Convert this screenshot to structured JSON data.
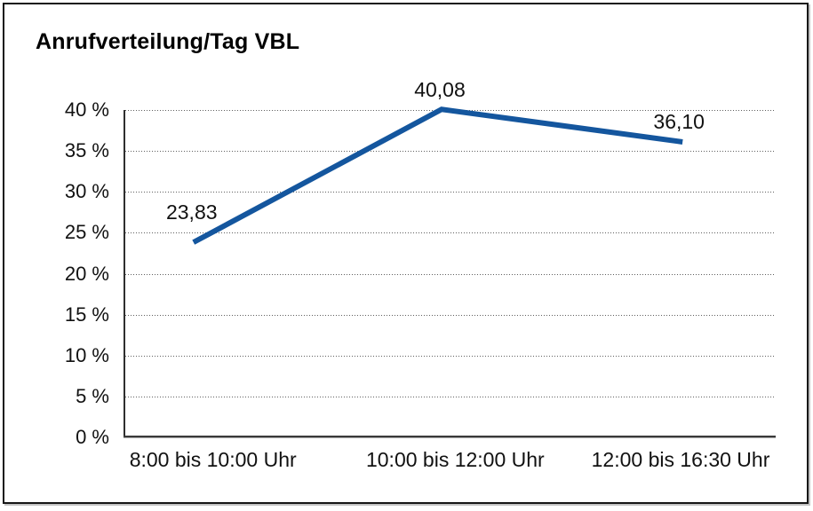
{
  "title": "Anrufverteilung/Tag VBL",
  "chart_data": {
    "type": "line",
    "title": "Anrufverteilung/Tag VBL",
    "categories": [
      "8:00 bis 10:00 Uhr",
      "10:00 bis 12:00 Uhr",
      "12:00 bis 16:30 Uhr"
    ],
    "values": [
      23.83,
      40.08,
      36.1
    ],
    "value_labels": [
      "23,83",
      "40,08",
      "36,10"
    ],
    "y_tick_values": [
      0,
      5,
      10,
      15,
      20,
      25,
      30,
      35,
      40
    ],
    "y_tick_labels": [
      "0 %",
      "5 %",
      "10 %",
      "15 %",
      "20 %",
      "25 %",
      "30 %",
      "35 %",
      "40 %"
    ],
    "xlabel": "",
    "ylabel": "",
    "ylim": [
      0,
      40
    ],
    "grid": "horizontal-dotted",
    "legend": "none",
    "line_color": "#14569e",
    "axis_color": "#2e2e2e",
    "text_color": "#111111",
    "background": "#ffffff"
  }
}
